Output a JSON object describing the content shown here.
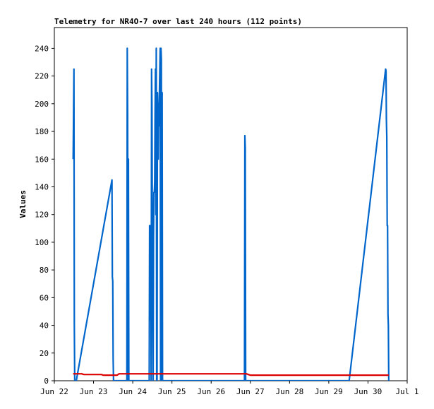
{
  "chart_data": {
    "type": "line",
    "title": "Telemetry for NR4O-7 over last 240 hours (112 points)",
    "xlabel": "",
    "ylabel": "Values",
    "ylim": [
      0,
      255
    ],
    "y_ticks": [
      0,
      20,
      40,
      60,
      80,
      100,
      120,
      140,
      160,
      180,
      200,
      220,
      240
    ],
    "x_ticks": [
      {
        "day": 0,
        "label": "Jun 22"
      },
      {
        "day": 1,
        "label": "Jun 23"
      },
      {
        "day": 2,
        "label": "Jun 24"
      },
      {
        "day": 3,
        "label": "Jun 25"
      },
      {
        "day": 4,
        "label": "Jun 26"
      },
      {
        "day": 5,
        "label": "Jun 27"
      },
      {
        "day": 6,
        "label": "Jun 28"
      },
      {
        "day": 7,
        "label": "Jun 29"
      },
      {
        "day": 8,
        "label": "Jun 30"
      },
      {
        "day": 9,
        "label": "Jul 1"
      }
    ],
    "xlim": [
      0,
      9
    ],
    "grid": false,
    "series": [
      {
        "color": "#0066cc",
        "points": [
          [
            0.48,
            160
          ],
          [
            0.49,
            192
          ],
          [
            0.5,
            225
          ],
          [
            0.51,
            40
          ],
          [
            0.52,
            0
          ],
          [
            0.56,
            0
          ],
          [
            1.47,
            145
          ],
          [
            1.48,
            75
          ],
          [
            1.49,
            72
          ],
          [
            1.5,
            16
          ],
          [
            1.51,
            0
          ],
          [
            1.52,
            0
          ],
          [
            1.58,
            0
          ],
          [
            1.85,
            0
          ],
          [
            1.86,
            240
          ],
          [
            1.87,
            192
          ],
          [
            1.88,
            0
          ],
          [
            1.89,
            160
          ],
          [
            1.9,
            0
          ],
          [
            1.91,
            0
          ],
          [
            2.42,
            0
          ],
          [
            2.43,
            112
          ],
          [
            2.44,
            56
          ],
          [
            2.45,
            44
          ],
          [
            2.46,
            112
          ],
          [
            2.47,
            0
          ],
          [
            2.48,
            225
          ],
          [
            2.49,
            200
          ],
          [
            2.5,
            104
          ],
          [
            2.51,
            44
          ],
          [
            2.52,
            0
          ],
          [
            2.53,
            104
          ],
          [
            2.54,
            136
          ],
          [
            2.55,
            136
          ],
          [
            2.56,
            144
          ],
          [
            2.57,
            196
          ],
          [
            2.58,
            225
          ],
          [
            2.59,
            120
          ],
          [
            2.6,
            240
          ],
          [
            2.61,
            0
          ],
          [
            2.62,
            0
          ],
          [
            2.63,
            208
          ],
          [
            2.64,
            196
          ],
          [
            2.65,
            160
          ],
          [
            2.66,
            200
          ],
          [
            2.67,
            184
          ],
          [
            2.68,
            208
          ],
          [
            2.69,
            224
          ],
          [
            2.7,
            240
          ],
          [
            2.71,
            0
          ],
          [
            2.72,
            240
          ],
          [
            2.73,
            232
          ],
          [
            2.74,
            0
          ],
          [
            2.75,
            208
          ],
          [
            2.76,
            0
          ],
          [
            2.77,
            0
          ],
          [
            4.85,
            0
          ],
          [
            4.86,
            177
          ],
          [
            4.87,
            168
          ],
          [
            4.88,
            0
          ],
          [
            4.89,
            0
          ],
          [
            7.52,
            0
          ],
          [
            8.45,
            225
          ],
          [
            8.46,
            224
          ],
          [
            8.47,
            188
          ],
          [
            8.48,
            176
          ],
          [
            8.49,
            112
          ],
          [
            8.5,
            112
          ],
          [
            8.51,
            48
          ],
          [
            8.52,
            40
          ],
          [
            8.53,
            0
          ]
        ]
      },
      {
        "color": "#dd0000",
        "points": [
          [
            0.48,
            5
          ],
          [
            0.7,
            5
          ],
          [
            0.75,
            4.5
          ],
          [
            1.2,
            4.5
          ],
          [
            1.25,
            4
          ],
          [
            1.6,
            4
          ],
          [
            1.65,
            5
          ],
          [
            2.0,
            5
          ],
          [
            4.9,
            5
          ],
          [
            5.0,
            4
          ],
          [
            7.0,
            4
          ],
          [
            8.53,
            4
          ]
        ]
      }
    ]
  }
}
